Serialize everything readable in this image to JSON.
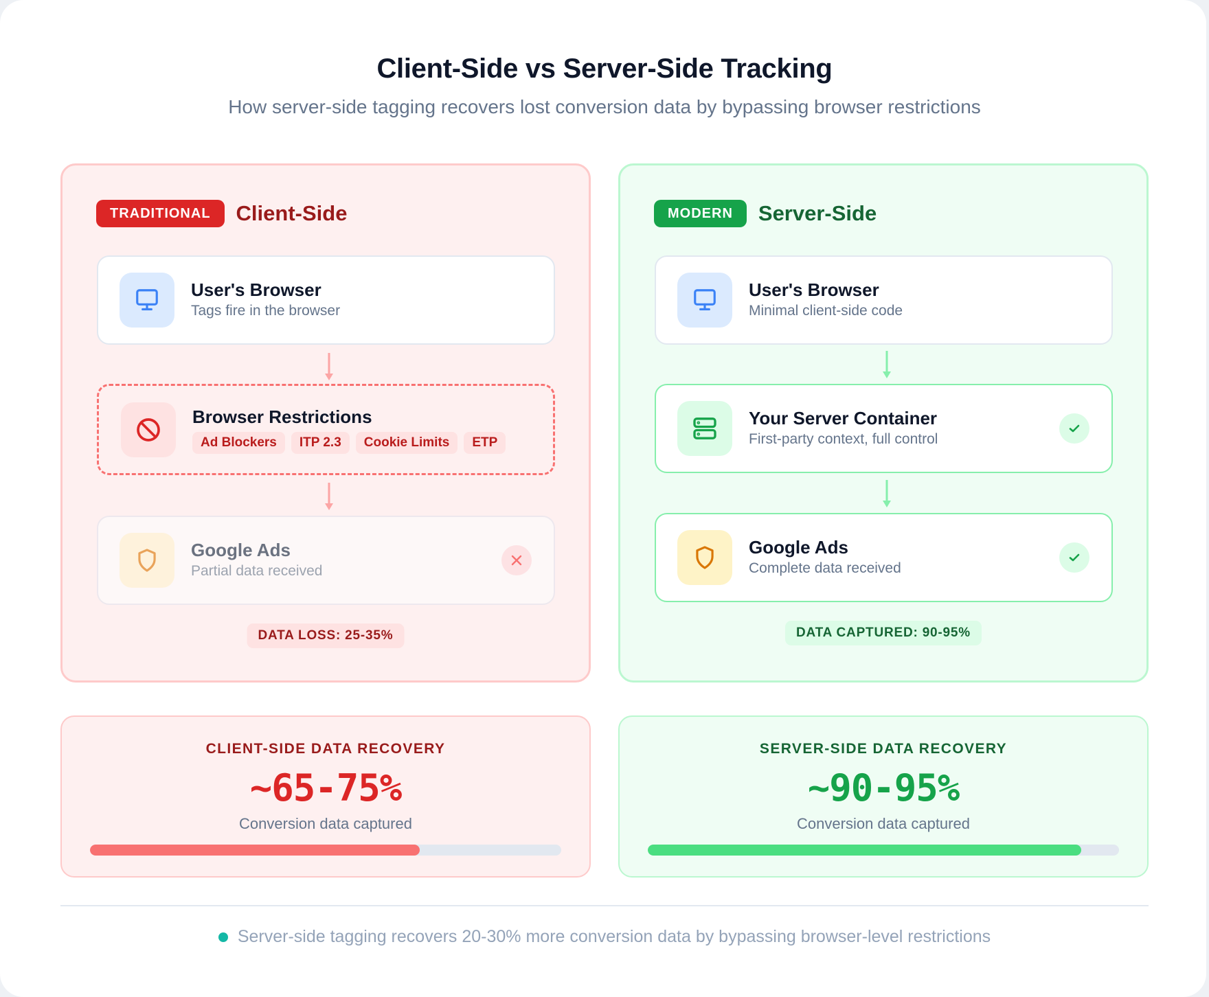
{
  "header": {
    "title": "Client-Side vs Server-Side Tracking",
    "subtitle": "How server-side tagging recovers lost conversion data by bypassing browser restrictions"
  },
  "client_panel": {
    "tag": "TRADITIONAL",
    "title": "Client-Side",
    "nodes": [
      {
        "title": "User's Browser",
        "subtitle": "Tags fire in the browser",
        "icon": "monitor-icon"
      },
      {
        "title": "Browser Restrictions",
        "icon": "blocked-icon",
        "chips": [
          "Ad Blockers",
          "ITP 2.3",
          "Cookie Limits",
          "ETP"
        ]
      },
      {
        "title": "Google Ads",
        "subtitle": "Partial data received",
        "icon": "shield-icon",
        "status": "x-icon"
      }
    ],
    "result": "DATA LOSS: 25-35%"
  },
  "server_panel": {
    "tag": "MODERN",
    "title": "Server-Side",
    "nodes": [
      {
        "title": "User's Browser",
        "subtitle": "Minimal client-side code",
        "icon": "monitor-icon"
      },
      {
        "title": "Your Server Container",
        "subtitle": "First-party context, full control",
        "icon": "server-icon",
        "status": "check-icon"
      },
      {
        "title": "Google Ads",
        "subtitle": "Complete data received",
        "icon": "shield-icon",
        "status": "check-icon"
      }
    ],
    "result": "DATA CAPTURED: 90-95%"
  },
  "stats": {
    "client": {
      "label": "CLIENT-SIDE DATA RECOVERY",
      "value": "~65-75%",
      "caption": "Conversion data captured",
      "progress_percent": 70,
      "color": "#f87171"
    },
    "server": {
      "label": "SERVER-SIDE DATA RECOVERY",
      "value": "~90-95%",
      "caption": "Conversion data captured",
      "progress_percent": 92,
      "color": "#4ade80"
    }
  },
  "footer": {
    "text": "Server-side tagging recovers 20-30% more conversion data by bypassing browser-level restrictions",
    "dot_color": "#14b8a6"
  },
  "colors": {
    "client_accent": "#dc2626",
    "server_accent": "#16a34a",
    "client_bg": "#fef0f0",
    "server_bg": "#effdf4"
  }
}
